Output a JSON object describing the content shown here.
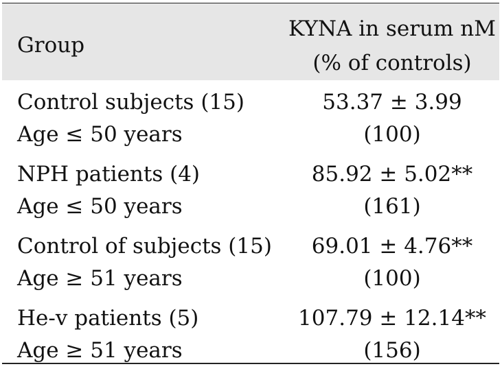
{
  "table": {
    "header": {
      "group": "Group",
      "value_line1": "KYNA in serum nM",
      "value_line2": "(% of controls)"
    },
    "rows": [
      {
        "group": "Control subjects (15)",
        "age": "Age ≤ 50 years",
        "value": "53.37 ± 3.99",
        "percent": "(100)"
      },
      {
        "group": "NPH patients (4)",
        "age": "Age ≤ 50 years",
        "value": "85.92 ± 5.02**",
        "percent": "(161)"
      },
      {
        "group": "Control of subjects (15)",
        "age": "Age ≥ 51 years",
        "value": "69.01 ± 4.76**",
        "percent": "(100)"
      },
      {
        "group": "He-v patients (5)",
        "age": "Age ≥ 51 years",
        "value": "107.79 ± 12.14**",
        "percent": "(156)"
      }
    ]
  }
}
